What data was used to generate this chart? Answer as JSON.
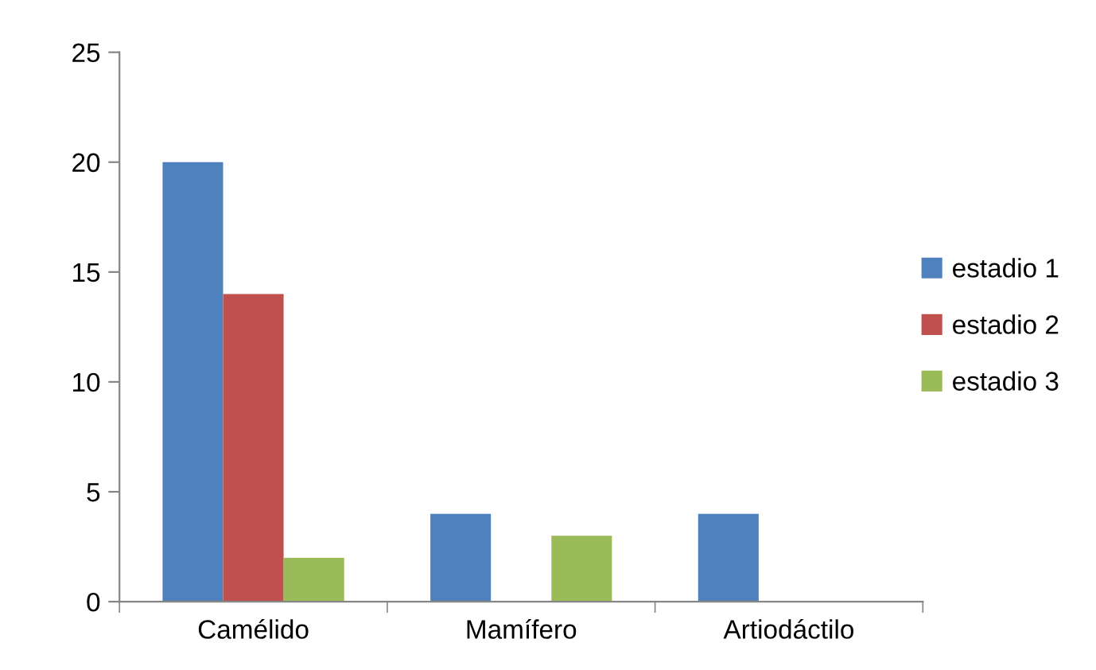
{
  "chart_data": {
    "type": "bar",
    "categories": [
      "Camélido",
      "Mamífero",
      "Artiodáctilo"
    ],
    "series": [
      {
        "name": "estadio 1",
        "color": "#4f81bd",
        "values": [
          20,
          4,
          4
        ]
      },
      {
        "name": "estadio 2",
        "color": "#c0504d",
        "values": [
          14,
          0,
          0
        ]
      },
      {
        "name": "estadio 3",
        "color": "#9bbb59",
        "values": [
          2,
          3,
          0
        ]
      }
    ],
    "ylim": [
      0,
      25
    ],
    "yticks": [
      0,
      5,
      10,
      15,
      20,
      25
    ],
    "grid": false,
    "legend": "right"
  }
}
